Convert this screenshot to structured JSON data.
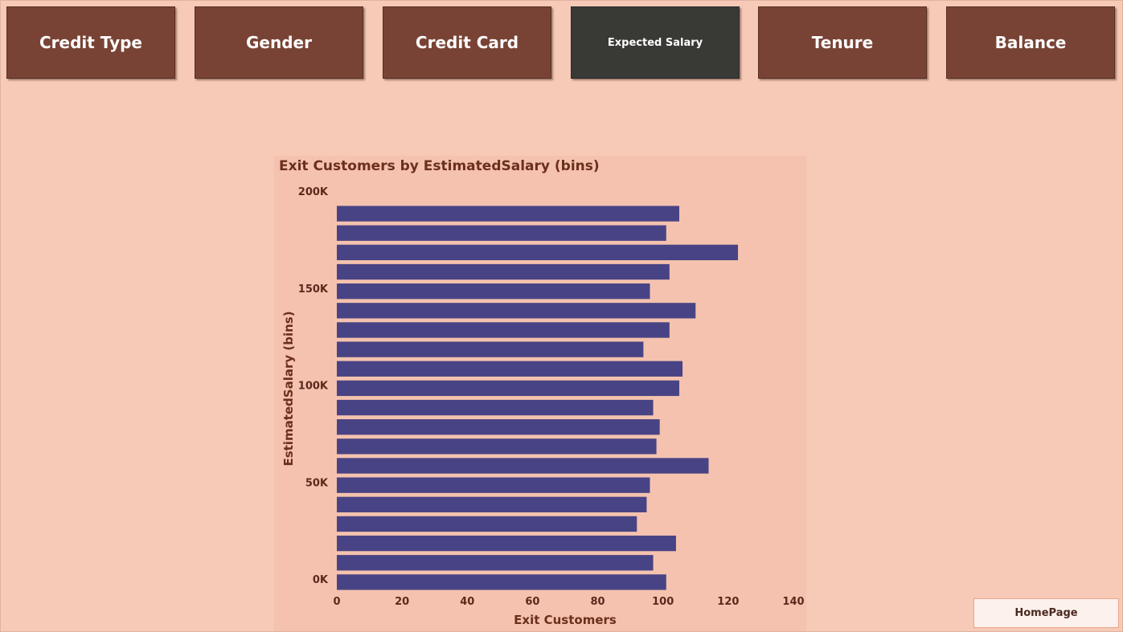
{
  "nav": [
    {
      "label": "Credit Type",
      "active": false
    },
    {
      "label": "Gender",
      "active": false
    },
    {
      "label": "Credit Card",
      "active": false
    },
    {
      "label": "Expected Salary",
      "active": true
    },
    {
      "label": "Tenure",
      "active": false
    },
    {
      "label": "Balance",
      "active": false
    }
  ],
  "home_button": "HomePage",
  "colors": {
    "button": "#784335",
    "active_button": "#393a36",
    "bar": "#484384",
    "background": "#f6cab6"
  },
  "chart_data": {
    "type": "bar",
    "orientation": "horizontal",
    "title": "Exit Customers by EstimatedSalary (bins)",
    "xlabel": "Exit Customers",
    "ylabel": "EstimatedSalary (bins)",
    "bin_starts": [
      0,
      10000,
      20000,
      30000,
      40000,
      50000,
      60000,
      70000,
      80000,
      90000,
      100000,
      110000,
      120000,
      130000,
      140000,
      150000,
      160000,
      170000,
      180000,
      190000
    ],
    "values": [
      101,
      97,
      104,
      92,
      95,
      96,
      114,
      98,
      99,
      97,
      105,
      106,
      94,
      102,
      110,
      96,
      102,
      123,
      101,
      105
    ],
    "xlim": [
      0,
      140
    ],
    "ylim": [
      0,
      200000
    ],
    "xticks": [
      "0",
      "20",
      "40",
      "60",
      "80",
      "100",
      "120",
      "140"
    ],
    "yticks": [
      {
        "value": 0,
        "label": "0K"
      },
      {
        "value": 50000,
        "label": "50K"
      },
      {
        "value": 100000,
        "label": "100K"
      },
      {
        "value": 150000,
        "label": "150K"
      },
      {
        "value": 200000,
        "label": "200K"
      }
    ],
    "grid": false,
    "legend": "none"
  }
}
